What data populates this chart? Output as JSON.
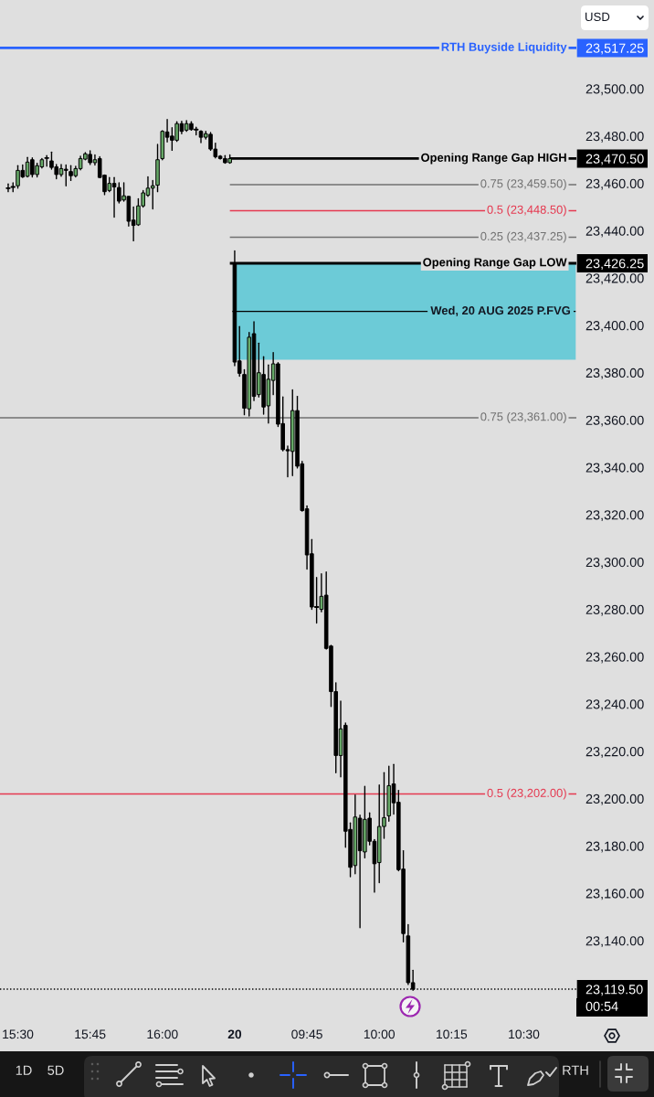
{
  "chart_data": {
    "type": "candlestick",
    "categories": [
      null,
      null,
      "15:30",
      null,
      null,
      null,
      null,
      null,
      null,
      null,
      null,
      null,
      null,
      null,
      null,
      null,
      null,
      "15:45",
      null,
      null,
      null,
      null,
      null,
      null,
      null,
      null,
      null,
      null,
      null,
      null,
      null,
      null,
      "16:00",
      null,
      null,
      null,
      null,
      null,
      null,
      null,
      null,
      null,
      null,
      null,
      null,
      null,
      null,
      "20",
      null,
      null,
      null,
      null,
      null,
      null,
      null,
      null,
      null,
      null,
      null,
      null,
      null,
      null,
      "09:45",
      null,
      null,
      null,
      null,
      null,
      null,
      null,
      null,
      null,
      null,
      null,
      null,
      null,
      null,
      "10:00",
      null,
      null,
      null,
      null,
      null,
      null,
      null,
      null,
      null,
      null,
      null,
      null,
      null,
      null,
      "10:15",
      null,
      null,
      null,
      null,
      null,
      null,
      null,
      null,
      null,
      null,
      null,
      null,
      null,
      null,
      "10:30",
      null,
      null,
      null,
      null,
      null,
      null,
      null,
      null,
      null,
      null
    ],
    "ohlc": [
      [
        23458.0,
        23459.75,
        23456.5,
        23458.0
      ],
      [
        23458.5,
        23460.25,
        23456.5,
        23458.5
      ],
      [
        23459.0,
        23467.5,
        23458.0,
        23465.5
      ],
      [
        23465.5,
        23467.75,
        23462.5,
        23462.75
      ],
      [
        23463.0,
        23471.0,
        23462.75,
        23469.0
      ],
      [
        23470.0,
        23470.75,
        23462.75,
        23463.75
      ],
      [
        23463.75,
        23468.5,
        23462.75,
        23467.5
      ],
      [
        23467.0,
        23470.5,
        23466.5,
        23470.0
      ],
      [
        23470.75,
        23471.75,
        23467.25,
        23470.75
      ],
      [
        23469.5,
        23473.25,
        23466.0,
        23466.75
      ],
      [
        23467.0,
        23468.0,
        23462.0,
        23463.75
      ],
      [
        23463.75,
        23468.0,
        23463.0,
        23466.25
      ],
      [
        23466.0,
        23467.75,
        23459.0,
        23465.5
      ],
      [
        23465.0,
        23467.5,
        23461.25,
        23463.25
      ],
      [
        23463.25,
        23467.25,
        23462.75,
        23466.25
      ],
      [
        23466.25,
        23471.5,
        23465.75,
        23470.5
      ],
      [
        23470.25,
        23473.0,
        23470.0,
        23472.5
      ],
      [
        23472.25,
        23473.75,
        23468.0,
        23468.75
      ],
      [
        23468.75,
        23472.0,
        23467.75,
        23470.0
      ],
      [
        23470.5,
        23471.25,
        23462.5,
        23462.5
      ],
      [
        23463.5,
        23463.5,
        23455.25,
        23456.5
      ],
      [
        23457.0,
        23462.5,
        23456.5,
        23460.0
      ],
      [
        23460.0,
        23462.5,
        23445.75,
        23458.5
      ],
      [
        23458.25,
        23460.25,
        23451.75,
        23452.5
      ],
      [
        23453.0,
        23460.25,
        23452.5,
        23454.75
      ],
      [
        23454.5,
        23454.5,
        23442.0,
        23444.0
      ],
      [
        23444.5,
        23450.0,
        23435.75,
        23442.25
      ],
      [
        23442.5,
        23453.5,
        23442.25,
        23450.5
      ],
      [
        23450.5,
        23457.0,
        23450.0,
        23456.0
      ],
      [
        23455.0,
        23462.75,
        23454.5,
        23458.0
      ],
      [
        23458.0,
        23461.25,
        23449.25,
        23459.0
      ],
      [
        23459.25,
        23476.5,
        23456.5,
        23470.0
      ],
      [
        23470.5,
        23482.25,
        23470.0,
        23482.0
      ],
      [
        23481.75,
        23487.0,
        23477.5,
        23479.5
      ],
      [
        23480.0,
        23483.5,
        23474.0,
        23478.25
      ],
      [
        23478.25,
        23486.0,
        23477.75,
        23485.25
      ],
      [
        23485.25,
        23486.25,
        23481.0,
        23482.0
      ],
      [
        23482.5,
        23486.5,
        23482.0,
        23485.25
      ],
      [
        23485.25,
        23486.0,
        23482.5,
        23482.75
      ],
      [
        23482.75,
        23483.75,
        23480.5,
        23482.5
      ],
      [
        23482.0,
        23482.25,
        23477.25,
        23479.5
      ],
      [
        23479.5,
        23482.0,
        23478.75,
        23481.0
      ],
      [
        23480.75,
        23481.5,
        23474.0,
        23474.5
      ],
      [
        23474.5,
        23477.0,
        23470.75,
        23471.25
      ],
      [
        23471.5,
        23471.75,
        23470.25,
        23470.5
      ],
      [
        23470.5,
        23471.75,
        23468.5,
        23468.75
      ],
      [
        23468.75,
        23472.0,
        23468.5,
        23470.5
      ],
      [
        23426.25,
        23431.5,
        23383.0,
        23384.5
      ],
      [
        23385.0,
        23399.5,
        23378.5,
        23379.75
      ],
      [
        23379.25,
        23381.25,
        23362.25,
        23365.0
      ],
      [
        23364.75,
        23397.0,
        23361.75,
        23395.0
      ],
      [
        23396.5,
        23401.5,
        23368.25,
        23370.0
      ],
      [
        23370.75,
        23392.5,
        23369.75,
        23380.0
      ],
      [
        23379.25,
        23386.75,
        23362.5,
        23365.5
      ],
      [
        23366.0,
        23383.25,
        23358.75,
        23377.25
      ],
      [
        23376.75,
        23388.5,
        23370.75,
        23383.75
      ],
      [
        23383.75,
        23384.25,
        23357.25,
        23358.25
      ],
      [
        23358.5,
        23369.75,
        23347.0,
        23347.5
      ],
      [
        23347.5,
        23349.0,
        23336.0,
        23347.0
      ],
      [
        23346.75,
        23372.75,
        23336.5,
        23364.0
      ],
      [
        23364.0,
        23370.0,
        23339.75,
        23340.5
      ],
      [
        23341.5,
        23342.5,
        23321.5,
        23321.75
      ],
      [
        23322.5,
        23323.75,
        23297.0,
        23303.0
      ],
      [
        23303.5,
        23309.5,
        23280.0,
        23281.0
      ],
      [
        23281.0,
        23293.5,
        23274.25,
        23280.75
      ],
      [
        23280.0,
        23295.0,
        23279.0,
        23285.5
      ],
      [
        23286.0,
        23295.75,
        23263.25,
        23263.5
      ],
      [
        23264.5,
        23264.75,
        23239.0,
        23245.25
      ],
      [
        23245.25,
        23249.0,
        23211.0,
        23218.25
      ],
      [
        23218.25,
        23241.25,
        23209.25,
        23229.5
      ],
      [
        23231.0,
        23232.0,
        23179.5,
        23186.25
      ],
      [
        23187.0,
        23189.75,
        23167.0,
        23171.0
      ],
      [
        23171.75,
        23201.5,
        23168.25,
        23192.25
      ],
      [
        23191.75,
        23193.0,
        23145.5,
        23178.0
      ],
      [
        23177.5,
        23205.25,
        23175.0,
        23191.25
      ],
      [
        23191.75,
        23194.0,
        23180.5,
        23182.0
      ],
      [
        23182.0,
        23182.75,
        23160.5,
        23172.5
      ],
      [
        23173.0,
        23205.75,
        23164.5,
        23188.25
      ],
      [
        23188.25,
        23211.0,
        23183.25,
        23192.0
      ],
      [
        23192.75,
        23213.75,
        23190.5,
        23205.5
      ],
      [
        23206.25,
        23214.5,
        23193.5,
        23198.25
      ],
      [
        23198.5,
        23203.5,
        23169.5,
        23170.0
      ],
      [
        23170.25,
        23178.0,
        23139.5,
        23143.0
      ],
      [
        23142.0,
        23146.75,
        23121.5,
        23122.25
      ],
      [
        23122.25,
        23127.5,
        23119.0,
        23119.5
      ],
      null,
      null,
      null,
      null,
      null,
      null,
      null,
      null,
      null,
      null,
      null,
      null,
      null,
      null,
      null,
      null,
      null,
      null,
      null,
      null,
      null,
      null,
      null,
      null,
      null,
      null,
      null,
      null,
      null,
      null,
      null,
      null,
      null
    ],
    "colors": [
      "#000000",
      "#000000",
      "#66a867",
      "#000000",
      "#66a867",
      "#000000",
      "#66a867",
      "#66a867",
      "#000000",
      "#000000",
      "#000000",
      "#66a867",
      "#000000",
      "#000000",
      "#66a867",
      "#66a867",
      "#66a867",
      "#000000",
      "#66a867",
      "#000000",
      "#000000",
      "#66a867",
      "#000000",
      "#000000",
      "#66a867",
      "#000000",
      "#000000",
      "#66a867",
      "#66a867",
      "#66a867",
      "#66a867",
      "#66a867",
      "#66a867",
      "#000000",
      "#000000",
      "#66a867",
      "#000000",
      "#66a867",
      "#000000",
      "#000000",
      "#000000",
      "#66a867",
      "#000000",
      "#000000",
      "#000000",
      "#000000",
      "#66a867",
      "#000000",
      "#000000",
      "#000000",
      "#66a867",
      "#000000",
      "#66a867",
      "#000000",
      "#66a867",
      "#66a867",
      "#000000",
      "#000000",
      "#000000",
      "#66a867",
      "#000000",
      "#000000",
      "#000000",
      "#000000",
      "#000000",
      "#66a867",
      "#000000",
      "#000000",
      "#000000",
      "#66a867",
      "#000000",
      "#000000",
      "#66a867",
      "#000000",
      "#66a867",
      "#000000",
      "#000000",
      "#66a867",
      "#66a867",
      "#66a867",
      "#000000",
      "#000000",
      "#000000",
      "#000000",
      "#000000",
      null,
      null,
      null,
      null,
      null,
      null,
      null,
      null,
      null,
      null,
      null,
      null,
      null,
      null,
      null,
      null,
      null,
      null,
      null,
      null,
      null,
      null,
      null,
      null,
      null,
      null,
      null,
      null,
      null,
      null,
      null,
      null,
      null
    ],
    "ylim": [
      23106.0,
      23537.5
    ],
    "yticks": [
      {
        "value": 23119.5,
        "label": "23,119.50"
      },
      {
        "value": 23140,
        "label": "23,140.00"
      },
      {
        "value": 23160,
        "label": "23,160.00"
      },
      {
        "value": 23180,
        "label": "23,180.00"
      },
      {
        "value": 23200,
        "label": "23,200.00"
      },
      {
        "value": 23220,
        "label": "23,220.00"
      },
      {
        "value": 23240,
        "label": "23,240.00"
      },
      {
        "value": 23260,
        "label": "23,260.00"
      },
      {
        "value": 23280,
        "label": "23,280.00"
      },
      {
        "value": 23300,
        "label": "23,300.00"
      },
      {
        "value": 23320,
        "label": "23,320.00"
      },
      {
        "value": 23340,
        "label": "23,340.00"
      },
      {
        "value": 23360,
        "label": "23,360.00"
      },
      {
        "value": 23380,
        "label": "23,380.00"
      },
      {
        "value": 23400,
        "label": "23,400.00"
      },
      {
        "value": 23420,
        "label": "23,420.00"
      },
      {
        "value": 23426.25,
        "label": "23,426.25"
      },
      {
        "value": 23440,
        "label": "23,440.00"
      },
      {
        "value": 23460,
        "label": "23,460.00"
      },
      {
        "value": 23470.5,
        "label": "23,470.50"
      },
      {
        "value": 23480,
        "label": "23,480.00"
      },
      {
        "value": 23500,
        "label": "23,500.00"
      },
      {
        "value": 23517.25,
        "label": "23,517.25"
      }
    ],
    "ref_lines": [
      {
        "axis": "y",
        "value": 23517.25,
        "label": "RTH Buyside Liquidity",
        "color": "#2962ff"
      },
      {
        "axis": "y",
        "value": 23470.5,
        "label": "Opening Range Gap HIGH",
        "color": "#000000"
      },
      {
        "axis": "y",
        "value": 23459.5,
        "label": "0.75 (23,459.50)",
        "color": "#707070"
      },
      {
        "axis": "y",
        "value": 23448.5,
        "label": "0.5 (23,448.50)",
        "color": "#e53950"
      },
      {
        "axis": "y",
        "value": 23437.25,
        "label": "0.25 (23,437.25)",
        "color": "#707070"
      },
      {
        "axis": "y",
        "value": 23426.25,
        "label": "Opening Range Gap LOW",
        "color": "#000000"
      },
      {
        "axis": "y",
        "value": 23361.0,
        "label": "0.75 (23,361.00)",
        "color": "#707070"
      },
      {
        "axis": "y",
        "value": 23202.0,
        "label": "0.5 (23,202.00)",
        "color": "#e53950"
      },
      {
        "axis": "y",
        "value": 23119.5,
        "color": "#000000",
        "line_style": "dotted"
      }
    ],
    "bands": [
      {
        "axis": "y",
        "from": 23385.5,
        "to": 23426.25,
        "label": "Wed, 20 AUG 2025 P.FVG",
        "color": "#6ccbd7"
      }
    ],
    "annotations": [
      "00:54",
      "USD",
      "1D",
      "5D",
      "RTH"
    ]
  }
}
